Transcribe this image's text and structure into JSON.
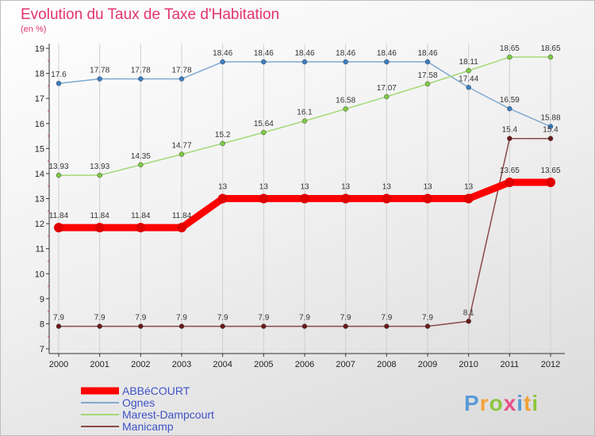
{
  "chart_data": {
    "type": "line",
    "title": "Evolution du Taux de Taxe d'Habitation",
    "subtitle": "(en %)",
    "x": [
      2000,
      2001,
      2002,
      2003,
      2004,
      2005,
      2006,
      2007,
      2008,
      2009,
      2010,
      2011,
      2012
    ],
    "x_tick_labels": [
      "2000",
      "2001",
      "2002",
      "2003",
      "2004",
      "2005",
      "2006",
      "2007",
      "2008",
      "2009",
      "2010",
      "2011",
      "2012"
    ],
    "ylim": [
      7,
      19
    ],
    "y_ticks": [
      7,
      8,
      9,
      10,
      11,
      12,
      13,
      14,
      15,
      16,
      17,
      18,
      19
    ],
    "y_tick_labels": [
      "7",
      "8",
      "9",
      "10",
      "11",
      "12",
      "13",
      "14",
      "15",
      "16",
      "17",
      "18",
      "19"
    ],
    "grid": "vertical",
    "legend_position": "bottom-left",
    "series": [
      {
        "name": "ABBéCOURT",
        "color": "#ff0000",
        "marker_color": "#e00000",
        "thick": true,
        "values": [
          11.84,
          11.84,
          11.84,
          11.84,
          13,
          13,
          13,
          13,
          13,
          13,
          13,
          13.65,
          13.65
        ],
        "labels": [
          "11.84",
          "11.84",
          "11.84",
          "11.84",
          "13",
          "13",
          "13",
          "13",
          "13",
          "13",
          "13",
          "13.65",
          "13.65"
        ]
      },
      {
        "name": "Ognes",
        "color": "#7fa9d1",
        "marker_color": "#3b7ec2",
        "thick": false,
        "values": [
          17.6,
          17.78,
          17.78,
          17.78,
          18.46,
          18.46,
          18.46,
          18.46,
          18.46,
          18.46,
          17.44,
          16.59,
          15.88
        ],
        "labels": [
          "17.6",
          "17.78",
          "17.78",
          "17.78",
          "18.46",
          "18.46",
          "18.46",
          "18.46",
          "18.46",
          "18.46",
          "17.44",
          "16.59",
          "15.88"
        ]
      },
      {
        "name": "Marest-Dampcourt",
        "color": "#a3d977",
        "marker_color": "#7ecb43",
        "thick": false,
        "values": [
          13.93,
          13.93,
          14.35,
          14.77,
          15.2,
          15.64,
          16.1,
          16.58,
          17.07,
          17.58,
          18.11,
          18.65,
          18.65
        ],
        "labels": [
          "13.93",
          "13.93",
          "14.35",
          "14.77",
          "15.2",
          "15.64",
          "16.1",
          "16.58",
          "17.07",
          "17.58",
          "18.11",
          "18.65",
          "18.65"
        ]
      },
      {
        "name": "Manicamp",
        "color": "#8a4a4a",
        "marker_color": "#6a1a1a",
        "thick": false,
        "values": [
          7.9,
          7.9,
          7.9,
          7.9,
          7.9,
          7.9,
          7.9,
          7.9,
          7.9,
          7.9,
          8.1,
          15.4,
          15.4
        ],
        "labels": [
          "7.9",
          "7.9",
          "7.9",
          "7.9",
          "7.9",
          "7.9",
          "7.9",
          "7.9",
          "7.9",
          "7.9",
          "8.1",
          "15.4",
          "15.4"
        ]
      }
    ]
  },
  "logo": {
    "letters": [
      "P",
      "r",
      "o",
      "x",
      "i",
      "t",
      "i"
    ],
    "colors": [
      "#5a9ad6",
      "#f2a23a",
      "#8cc63f",
      "#e84e8a",
      "#5a9ad6",
      "#f2a23a",
      "#8cc63f"
    ]
  }
}
